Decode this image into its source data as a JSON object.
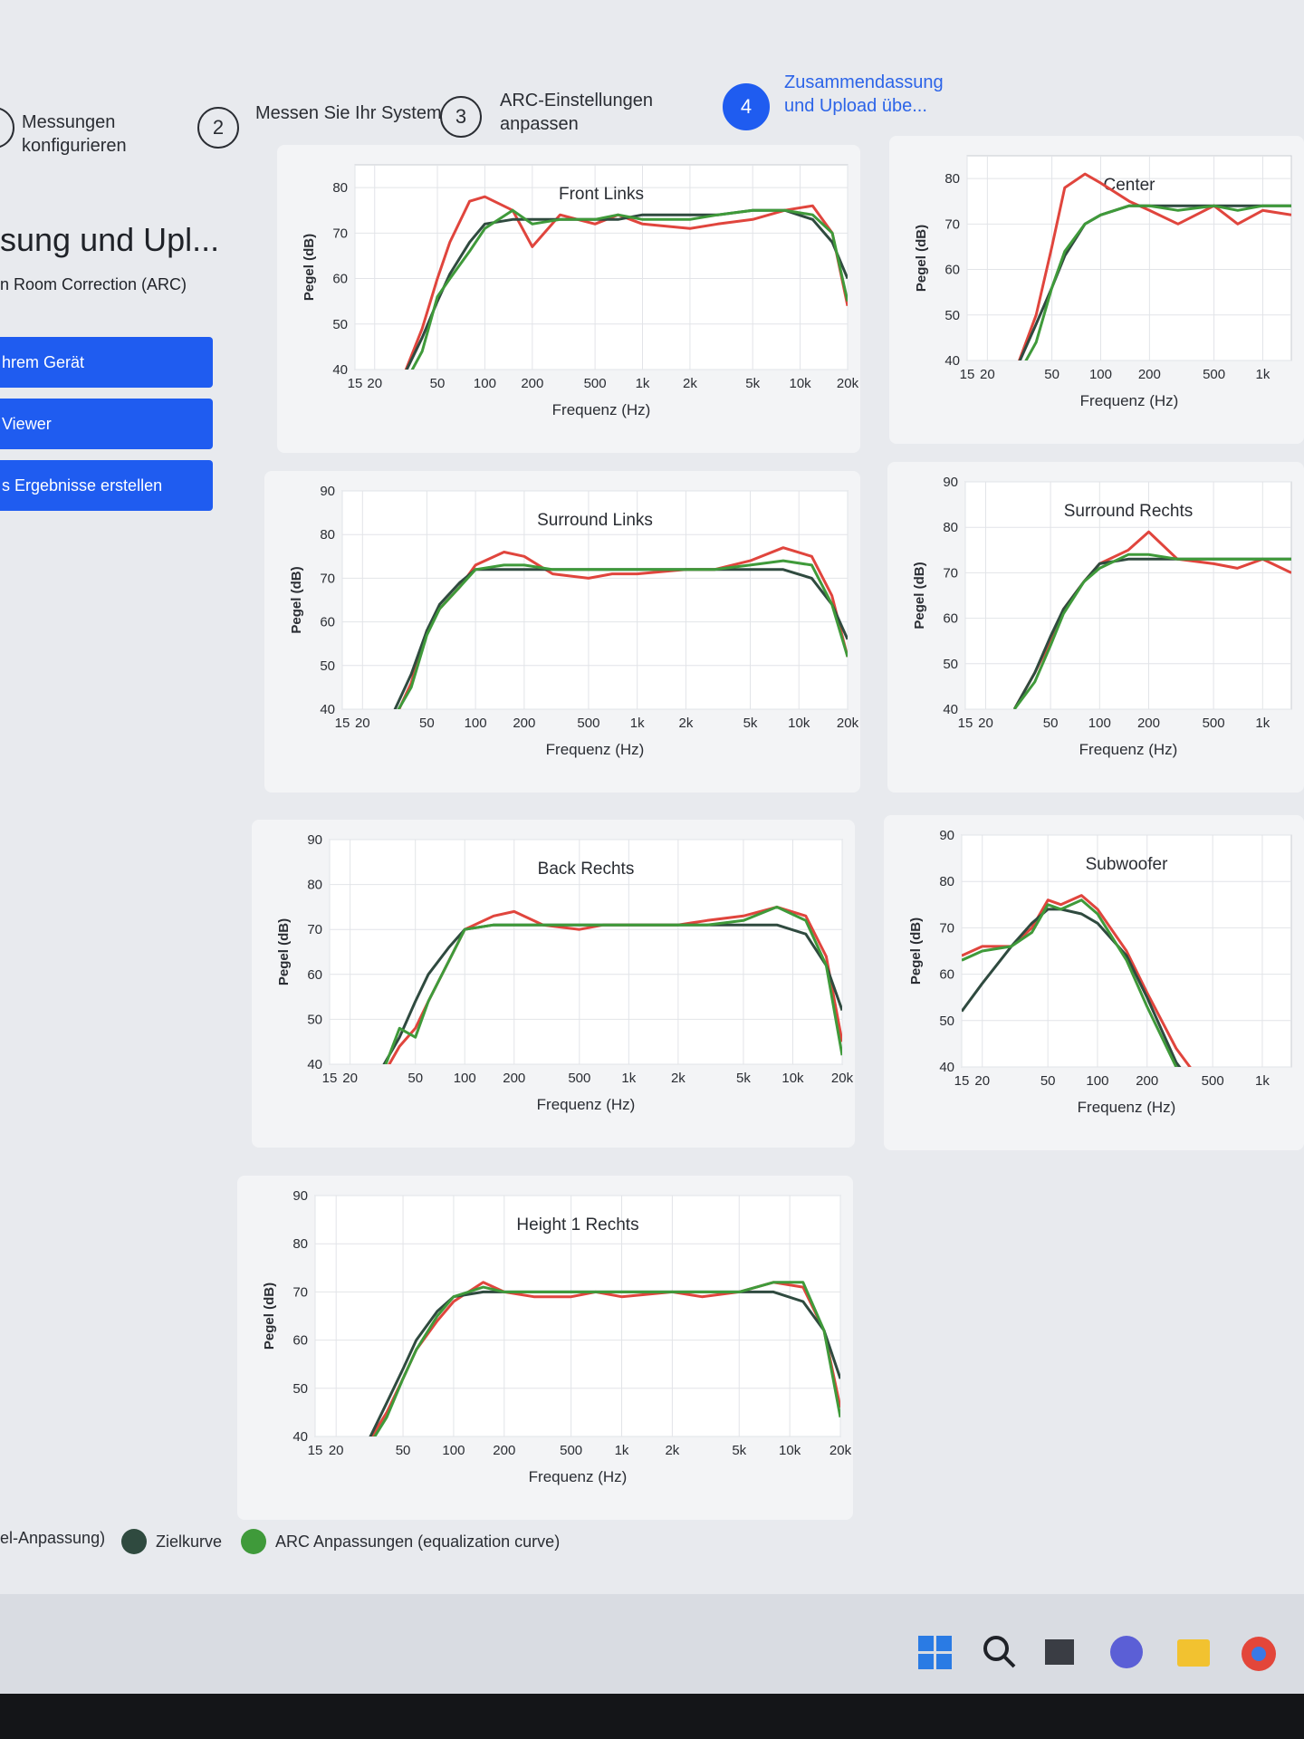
{
  "steps": {
    "items": [
      {
        "number": null,
        "label": "Messungen konfigurieren"
      },
      {
        "number": "2",
        "label": "Messen Sie Ihr System"
      },
      {
        "number": "3",
        "label": "ARC-Einstellungen anpassen"
      },
      {
        "number": "4",
        "label": "Zusammendassung und Upload übe..."
      }
    ]
  },
  "sidebar": {
    "title": "sung und Upl...",
    "subtitle": "n Room Correction (ARC)",
    "buttons": [
      "hrem Gerät",
      "Viewer",
      "s Ergebnisse erstellen"
    ]
  },
  "legend": {
    "items": [
      {
        "label": "el-Anpassung)",
        "color": "#e0453d"
      },
      {
        "label": "Zielkurve",
        "color": "#2f4a3f"
      },
      {
        "label": "ARC Anpassungen (equalization curve)",
        "color": "#3f9a3a"
      }
    ]
  },
  "chart_data": [
    {
      "type": "line",
      "title": "Front Links",
      "xlabel": "Frequenz (Hz)",
      "ylabel": "Pegel (dB)",
      "log_x": true,
      "grid": true,
      "xlim": [
        15,
        20000
      ],
      "ylim": [
        40,
        85
      ],
      "xticks": [
        15,
        20,
        50,
        100,
        200,
        500,
        {
          "value": 1000,
          "label": "1k"
        },
        {
          "value": 2000,
          "label": "2k"
        },
        {
          "value": 5000,
          "label": "5k"
        },
        {
          "value": 10000,
          "label": "10k"
        },
        {
          "value": 20000,
          "label": "20k"
        }
      ],
      "yticks": [
        40,
        50,
        60,
        70,
        80
      ],
      "x": [
        30,
        40,
        50,
        60,
        80,
        100,
        150,
        200,
        300,
        500,
        700,
        1000,
        2000,
        3000,
        5000,
        8000,
        12000,
        16000,
        20000
      ],
      "series": [
        {
          "color": "#e0453d",
          "values": [
            38,
            49,
            60,
            68,
            77,
            78,
            75,
            67,
            74,
            72,
            74,
            72,
            71,
            72,
            73,
            75,
            76,
            70,
            54
          ]
        },
        {
          "color": "#2f4a3f",
          "values": [
            38,
            47,
            55,
            61,
            68,
            72,
            73,
            73,
            73,
            73,
            73,
            74,
            74,
            74,
            75,
            75,
            73,
            68,
            60
          ]
        },
        {
          "color": "#3f9a3a",
          "values": [
            36,
            44,
            56,
            60,
            66,
            71,
            75,
            72,
            73,
            73,
            74,
            73,
            73,
            74,
            75,
            75,
            74,
            70,
            55
          ]
        }
      ]
    },
    {
      "type": "line",
      "title": "Center",
      "xlabel": "Frequenz (Hz)",
      "ylabel": "Pegel (dB)",
      "log_x": true,
      "grid": true,
      "xlim": [
        15,
        1500
      ],
      "ylim": [
        40,
        85
      ],
      "xticks": [
        15,
        20,
        50,
        100,
        200,
        500,
        {
          "value": 1000,
          "label": "1k"
        }
      ],
      "yticks": [
        40,
        50,
        60,
        70,
        80
      ],
      "x": [
        30,
        40,
        50,
        60,
        80,
        100,
        150,
        200,
        300,
        500,
        700,
        1000,
        1500
      ],
      "series": [
        {
          "color": "#e0453d",
          "values": [
            38,
            50,
            65,
            78,
            81,
            79,
            75,
            73,
            70,
            74,
            70,
            73,
            72
          ]
        },
        {
          "color": "#2f4a3f",
          "values": [
            38,
            48,
            56,
            63,
            70,
            72,
            74,
            74,
            74,
            74,
            74,
            74,
            74
          ]
        },
        {
          "color": "#3f9a3a",
          "values": [
            36,
            44,
            56,
            64,
            70,
            72,
            74,
            74,
            73,
            74,
            73,
            74,
            74
          ]
        }
      ]
    },
    {
      "type": "line",
      "title": "Surround Links",
      "xlabel": "Frequenz (Hz)",
      "ylabel": "Pegel (dB)",
      "log_x": true,
      "grid": true,
      "xlim": [
        15,
        20000
      ],
      "ylim": [
        40,
        90
      ],
      "xticks": [
        15,
        20,
        50,
        100,
        200,
        500,
        {
          "value": 1000,
          "label": "1k"
        },
        {
          "value": 2000,
          "label": "2k"
        },
        {
          "value": 5000,
          "label": "5k"
        },
        {
          "value": 10000,
          "label": "10k"
        },
        {
          "value": 20000,
          "label": "20k"
        }
      ],
      "yticks": [
        40,
        50,
        60,
        70,
        80,
        90
      ],
      "x": [
        30,
        40,
        50,
        60,
        80,
        100,
        150,
        200,
        300,
        500,
        700,
        1000,
        2000,
        3000,
        5000,
        8000,
        12000,
        16000,
        20000
      ],
      "series": [
        {
          "color": "#e0453d",
          "values": [
            36,
            46,
            58,
            63,
            68,
            73,
            76,
            75,
            71,
            70,
            71,
            71,
            72,
            72,
            74,
            77,
            75,
            66,
            52
          ]
        },
        {
          "color": "#2f4a3f",
          "values": [
            38,
            48,
            58,
            64,
            69,
            72,
            72,
            72,
            72,
            72,
            72,
            72,
            72,
            72,
            72,
            72,
            70,
            64,
            56
          ]
        },
        {
          "color": "#3f9a3a",
          "values": [
            37,
            45,
            57,
            63,
            68,
            72,
            73,
            73,
            72,
            72,
            72,
            72,
            72,
            72,
            73,
            74,
            73,
            64,
            52
          ]
        }
      ]
    },
    {
      "type": "line",
      "title": "Surround Rechts",
      "xlabel": "Frequenz (Hz)",
      "ylabel": "Pegel (dB)",
      "log_x": true,
      "grid": true,
      "xlim": [
        15,
        1500
      ],
      "ylim": [
        40,
        90
      ],
      "xticks": [
        15,
        20,
        50,
        100,
        200,
        500,
        {
          "value": 1000,
          "label": "1k"
        }
      ],
      "yticks": [
        40,
        50,
        60,
        70,
        80,
        90
      ],
      "x": [
        30,
        40,
        50,
        60,
        80,
        100,
        150,
        200,
        300,
        500,
        700,
        1000,
        1500
      ],
      "series": [
        {
          "color": "#e0453d",
          "values": [
            40,
            48,
            55,
            62,
            68,
            72,
            75,
            79,
            73,
            72,
            71,
            73,
            70
          ]
        },
        {
          "color": "#2f4a3f",
          "values": [
            40,
            48,
            56,
            62,
            68,
            72,
            73,
            73,
            73,
            73,
            73,
            73,
            73
          ]
        },
        {
          "color": "#3f9a3a",
          "values": [
            40,
            46,
            54,
            61,
            68,
            71,
            74,
            74,
            73,
            73,
            73,
            73,
            73
          ]
        }
      ]
    },
    {
      "type": "line",
      "title": "Back Rechts",
      "xlabel": "Frequenz (Hz)",
      "ylabel": "Pegel (dB)",
      "log_x": true,
      "grid": true,
      "xlim": [
        15,
        20000
      ],
      "ylim": [
        40,
        90
      ],
      "xticks": [
        15,
        20,
        50,
        100,
        200,
        500,
        {
          "value": 1000,
          "label": "1k"
        },
        {
          "value": 2000,
          "label": "2k"
        },
        {
          "value": 5000,
          "label": "5k"
        },
        {
          "value": 10000,
          "label": "10k"
        },
        {
          "value": 20000,
          "label": "20k"
        }
      ],
      "yticks": [
        40,
        50,
        60,
        70,
        80,
        90
      ],
      "x": [
        30,
        40,
        50,
        60,
        80,
        100,
        150,
        200,
        300,
        500,
        700,
        1000,
        2000,
        3000,
        5000,
        8000,
        12000,
        16000,
        20000
      ],
      "series": [
        {
          "color": "#e0453d",
          "values": [
            36,
            44,
            48,
            54,
            63,
            70,
            73,
            74,
            71,
            70,
            71,
            71,
            71,
            72,
            73,
            75,
            73,
            64,
            45
          ]
        },
        {
          "color": "#2f4a3f",
          "values": [
            38,
            46,
            54,
            60,
            66,
            70,
            71,
            71,
            71,
            71,
            71,
            71,
            71,
            71,
            71,
            71,
            69,
            62,
            52
          ]
        },
        {
          "color": "#3f9a3a",
          "values": [
            36,
            48,
            46,
            54,
            63,
            70,
            71,
            71,
            71,
            71,
            71,
            71,
            71,
            71,
            72,
            75,
            72,
            62,
            42
          ]
        }
      ]
    },
    {
      "type": "line",
      "title": "Subwoofer",
      "xlabel": "Frequenz (Hz)",
      "ylabel": "Pegel (dB)",
      "log_x": true,
      "grid": true,
      "xlim": [
        15,
        1500
      ],
      "ylim": [
        40,
        90
      ],
      "xticks": [
        15,
        20,
        50,
        100,
        200,
        500,
        {
          "value": 1000,
          "label": "1k"
        }
      ],
      "yticks": [
        40,
        50,
        60,
        70,
        80,
        90
      ],
      "x": [
        15,
        20,
        30,
        40,
        50,
        60,
        80,
        100,
        150,
        200,
        300,
        400
      ],
      "series": [
        {
          "color": "#e0453d",
          "values": [
            64,
            66,
            66,
            70,
            76,
            75,
            77,
            74,
            65,
            56,
            44,
            38
          ]
        },
        {
          "color": "#2f4a3f",
          "values": [
            52,
            58,
            66,
            71,
            74,
            74,
            73,
            71,
            64,
            55,
            41,
            35
          ]
        },
        {
          "color": "#3f9a3a",
          "values": [
            63,
            65,
            66,
            69,
            75,
            74,
            76,
            73,
            63,
            53,
            40,
            35
          ]
        }
      ]
    },
    {
      "type": "line",
      "title": "Height 1 Rechts",
      "xlabel": "Frequenz (Hz)",
      "ylabel": "Pegel (dB)",
      "log_x": true,
      "grid": true,
      "xlim": [
        15,
        20000
      ],
      "ylim": [
        40,
        90
      ],
      "xticks": [
        15,
        20,
        50,
        100,
        200,
        500,
        {
          "value": 1000,
          "label": "1k"
        },
        {
          "value": 2000,
          "label": "2k"
        },
        {
          "value": 5000,
          "label": "5k"
        },
        {
          "value": 10000,
          "label": "10k"
        },
        {
          "value": 20000,
          "label": "20k"
        }
      ],
      "yticks": [
        40,
        50,
        60,
        70,
        80,
        90
      ],
      "x": [
        30,
        40,
        50,
        60,
        80,
        100,
        150,
        200,
        300,
        500,
        700,
        1000,
        2000,
        3000,
        5000,
        8000,
        12000,
        16000,
        20000
      ],
      "series": [
        {
          "color": "#e0453d",
          "values": [
            38,
            45,
            52,
            58,
            64,
            68,
            72,
            70,
            69,
            69,
            70,
            69,
            70,
            69,
            70,
            72,
            71,
            62,
            46
          ]
        },
        {
          "color": "#2f4a3f",
          "values": [
            38,
            47,
            54,
            60,
            66,
            69,
            70,
            70,
            70,
            70,
            70,
            70,
            70,
            70,
            70,
            70,
            68,
            62,
            52
          ]
        },
        {
          "color": "#3f9a3a",
          "values": [
            37,
            44,
            52,
            58,
            65,
            69,
            71,
            70,
            70,
            70,
            70,
            70,
            70,
            70,
            70,
            72,
            72,
            62,
            44
          ]
        }
      ]
    }
  ]
}
